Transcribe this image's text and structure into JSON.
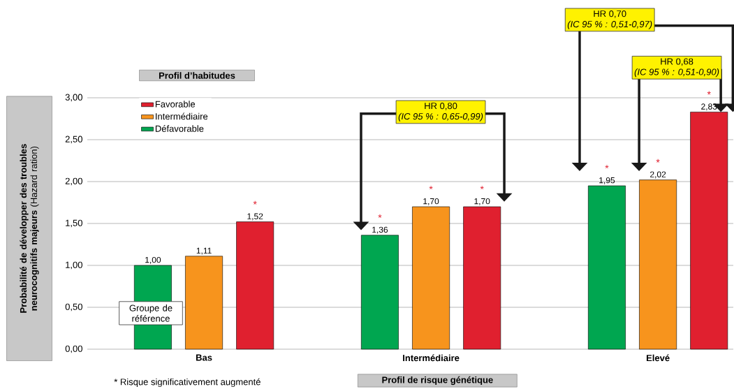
{
  "chart_data": {
    "type": "bar",
    "categories": [
      "Bas",
      "Intermédiaire",
      "Elevé"
    ],
    "series": [
      {
        "name": "Défavorable",
        "color": "#00a650",
        "values": [
          1.0,
          1.36,
          1.95
        ],
        "value_labels": [
          "1,00",
          "1,36",
          "1,95"
        ]
      },
      {
        "name": "Intermédiaire",
        "color": "#f7941d",
        "values": [
          1.11,
          1.7,
          2.02
        ],
        "value_labels": [
          "1,11",
          "1,70",
          "2,02"
        ]
      },
      {
        "name": "Favorable",
        "color": "#e0202f",
        "values": [
          1.52,
          1.7,
          2.83
        ],
        "value_labels": [
          "1,52",
          "1,70",
          "2,83"
        ]
      }
    ],
    "xlabel": "Profil de risque génétique",
    "ylabel": "**Probabilité de développer des troubles neurocognitifs majeurs** (Hazard ration)",
    "legend_title": "Profil d’habitudes",
    "legend": "top left",
    "grid": "y",
    "ylim": [
      0,
      3
    ],
    "yticks": [
      {
        "value": 0,
        "label": "0,00"
      },
      {
        "value": 0.5,
        "label": "0,50"
      },
      {
        "value": 1,
        "label": "1,00"
      },
      {
        "value": 1.5,
        "label": "1,50"
      },
      {
        "value": 2,
        "label": "2,00"
      },
      {
        "value": 2.5,
        "label": "2,50"
      },
      {
        "value": 3,
        "label": "3,00"
      }
    ],
    "annotations": [
      "*",
      "*",
      "*",
      "*",
      "*",
      "*",
      "*",
      "Groupe de référence",
      "HR 0,80",
      "(IC 95 % : 0,65-0,99)",
      "HR 0,70",
      "(IC 95 % : 0,51-0,97)",
      "HR 0,68",
      "(IC 95 % : 0,51-0,90)",
      "* Risque significativement augmenté"
    ]
  }
}
